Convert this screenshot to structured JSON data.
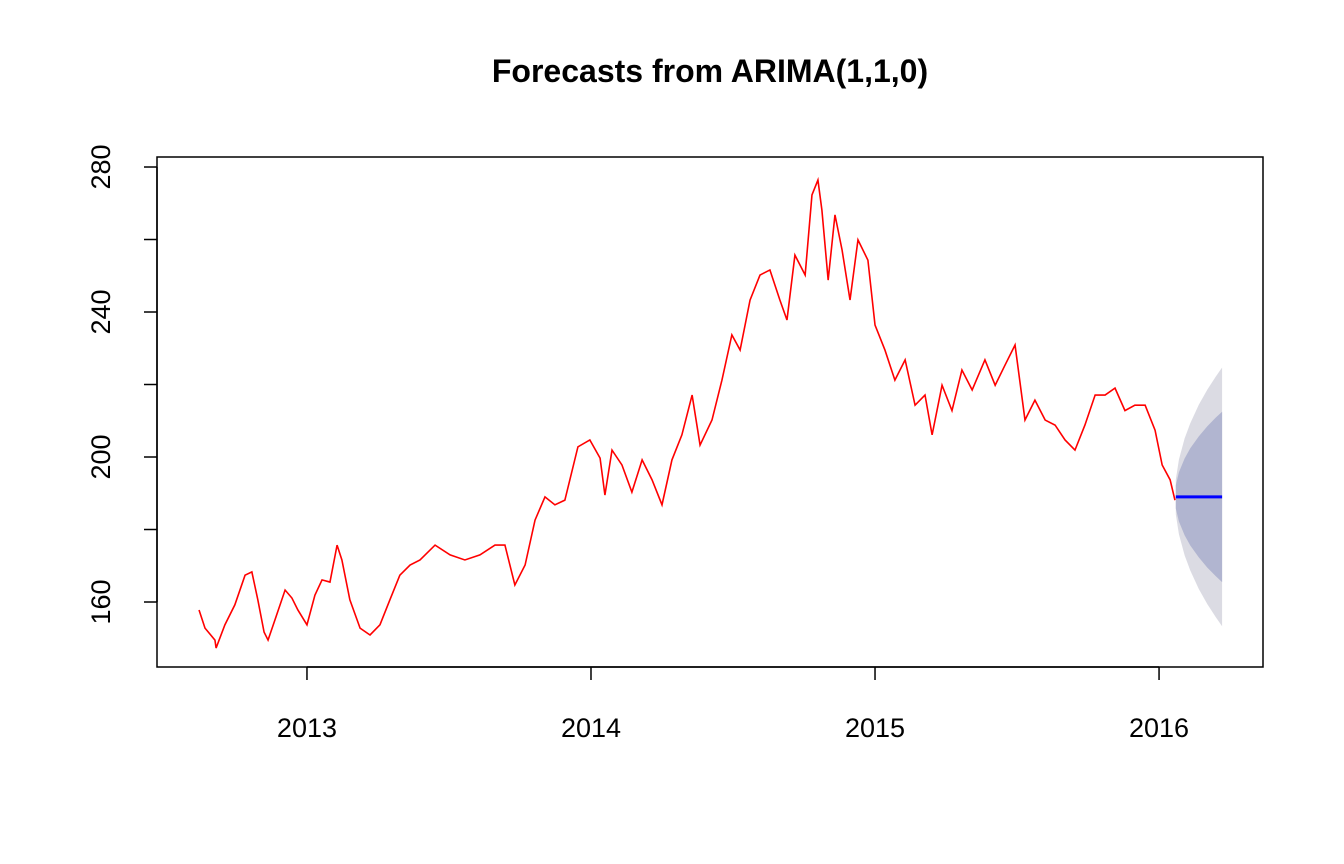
{
  "chart_data": {
    "type": "line",
    "title": "Forecasts from ARIMA(1,1,0)",
    "xlim": [
      2012.472,
      2016.366
    ],
    "ylim": [
      142.07,
      282.76
    ],
    "xticks": [
      2013,
      2014,
      2015,
      2016
    ],
    "yticks": [
      160,
      {
        "value": 180,
        "label": null
      },
      200,
      {
        "value": 220,
        "label": null
      },
      240,
      {
        "value": 260,
        "label": null
      },
      280
    ],
    "series": [
      {
        "color": "#ff0000",
        "x": [
          2012.62,
          2012.641,
          2012.676,
          2012.68,
          2012.711,
          2012.746,
          2012.782,
          2012.806,
          2012.827,
          2012.849,
          2012.863,
          2012.887,
          2012.923,
          2012.947,
          2012.968,
          2013.0,
          2013.028,
          2013.053,
          2013.081,
          2013.106,
          2013.123,
          2013.151,
          2013.187,
          2013.222,
          2013.257,
          2013.292,
          2013.327,
          2013.363,
          2013.398,
          2013.451,
          2013.504,
          2013.556,
          2013.609,
          2013.662,
          2013.697,
          2013.732,
          2013.768,
          2013.803,
          2013.838,
          2013.873,
          2013.908,
          2013.954,
          2013.996,
          2014.032,
          2014.049,
          2014.074,
          2014.109,
          2014.144,
          2014.18,
          2014.215,
          2014.25,
          2014.285,
          2014.32,
          2014.356,
          2014.384,
          2014.426,
          2014.461,
          2014.496,
          2014.525,
          2014.56,
          2014.595,
          2014.63,
          2014.665,
          2014.69,
          2014.718,
          2014.754,
          2014.778,
          2014.799,
          2014.813,
          2014.835,
          2014.859,
          2014.884,
          2014.912,
          2014.94,
          2014.975,
          2015.0,
          2015.035,
          2015.07,
          2015.106,
          2015.141,
          2015.176,
          2015.201,
          2015.236,
          2015.271,
          2015.306,
          2015.342,
          2015.387,
          2015.423,
          2015.458,
          2015.493,
          2015.528,
          2015.563,
          2015.599,
          2015.634,
          2015.669,
          2015.704,
          2015.739,
          2015.775,
          2015.81,
          2015.845,
          2015.88,
          2015.915,
          2015.951,
          2015.986,
          2016.011,
          2016.039,
          2016.056
        ],
        "values": [
          157.8,
          152.8,
          149.5,
          147.3,
          153.7,
          159.2,
          167.4,
          168.3,
          160.6,
          151.7,
          149.5,
          155.0,
          163.3,
          161.1,
          157.8,
          153.7,
          161.9,
          166.1,
          165.5,
          175.7,
          171.6,
          160.6,
          152.8,
          150.9,
          153.7,
          160.6,
          167.4,
          170.2,
          171.6,
          175.7,
          173.0,
          171.6,
          173.0,
          175.7,
          175.7,
          164.7,
          170.2,
          182.6,
          189.0,
          186.8,
          188.1,
          202.8,
          204.7,
          199.7,
          189.5,
          201.9,
          197.8,
          190.3,
          199.2,
          193.7,
          186.8,
          199.2,
          206.1,
          217.1,
          203.3,
          210.2,
          221.2,
          233.7,
          229.5,
          243.3,
          250.2,
          251.6,
          243.3,
          237.8,
          255.7,
          250.2,
          272.3,
          276.4,
          268.1,
          248.8,
          266.8,
          257.1,
          243.3,
          259.9,
          254.3,
          236.4,
          229.5,
          221.2,
          226.8,
          214.3,
          217.1,
          206.1,
          219.8,
          212.8,
          224.0,
          218.5,
          226.8,
          219.8,
          225.4,
          230.9,
          210.2,
          215.7,
          210.2,
          208.8,
          204.7,
          201.9,
          208.8,
          217.1,
          217.1,
          219.0,
          212.8,
          214.3,
          214.3,
          207.4,
          197.8,
          193.7,
          188.1
        ]
      }
    ],
    "forecast": {
      "color": "#0000ff",
      "color80": "#b1b5d0",
      "color95": "#dbdbe3",
      "x": [
        2016.059,
        2016.07,
        2016.09,
        2016.11,
        2016.14,
        2016.17,
        2016.2,
        2016.222
      ],
      "mean": [
        189,
        189,
        189,
        189,
        189,
        189,
        189,
        189
      ],
      "lower80": [
        185.8,
        182.2,
        178.4,
        175.6,
        172.3,
        169.5,
        167.1,
        165.5
      ],
      "upper80": [
        192.2,
        195.8,
        199.6,
        202.4,
        205.7,
        208.5,
        210.9,
        212.5
      ],
      "lower95": [
        184.2,
        178.7,
        172.9,
        168.7,
        163.6,
        159.4,
        155.8,
        153.3
      ],
      "upper95": [
        193.8,
        199.3,
        205.1,
        209.3,
        214.4,
        218.6,
        222.2,
        224.7
      ]
    }
  }
}
